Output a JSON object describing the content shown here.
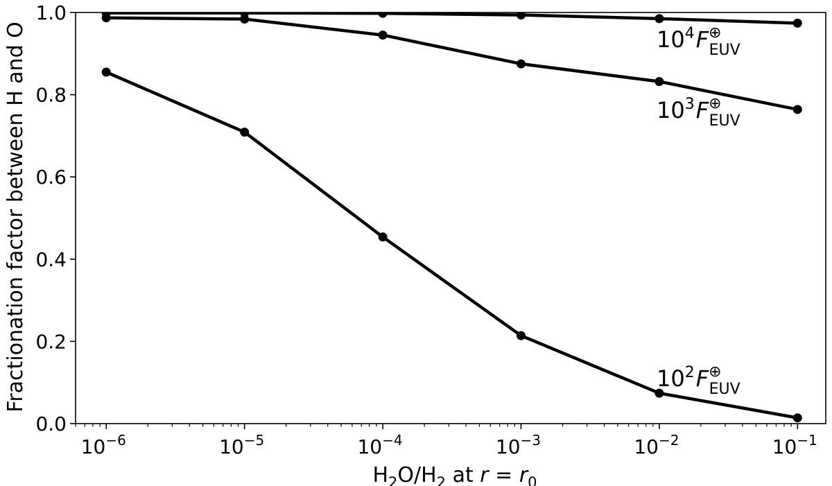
{
  "chart_data": {
    "type": "line",
    "xlabel": "H2O/H2 at r = r0",
    "ylabel": "Fractionation factor between H and O",
    "x_scale": "log",
    "x_ticks": [
      "1e-6",
      "1e-5",
      "1e-4",
      "1e-3",
      "1e-2",
      "1e-1"
    ],
    "x_tick_labels": [
      {
        "base": "10",
        "exp": "−6"
      },
      {
        "base": "10",
        "exp": "−5"
      },
      {
        "base": "10",
        "exp": "−4"
      },
      {
        "base": "10",
        "exp": "−3"
      },
      {
        "base": "10",
        "exp": "−2"
      },
      {
        "base": "10",
        "exp": "−1"
      }
    ],
    "y_ticks": [
      "0.0",
      "0.2",
      "0.4",
      "0.6",
      "0.8",
      "1.0"
    ],
    "xlim": [
      6e-07,
      0.16
    ],
    "ylim": [
      0.0,
      1.0
    ],
    "x": [
      1e-06,
      1e-05,
      0.0001,
      0.001,
      0.01,
      0.1
    ],
    "series": [
      {
        "name": "10^4 F_EUV",
        "label": {
          "base": "10",
          "exp": "4",
          "F": "F",
          "sup": "⊕",
          "sub": "EUV"
        },
        "values": [
          0.999,
          0.999,
          0.998,
          0.994,
          0.985,
          0.974
        ]
      },
      {
        "name": "10^3 F_EUV",
        "label": {
          "base": "10",
          "exp": "3",
          "F": "F",
          "sup": "⊕",
          "sub": "EUV"
        },
        "values": [
          0.987,
          0.984,
          0.945,
          0.875,
          0.832,
          0.764
        ]
      },
      {
        "name": "10^2 F_EUV",
        "label": {
          "base": "10",
          "exp": "2",
          "F": "F",
          "sup": "⊕",
          "sub": "EUV"
        },
        "values": [
          0.855,
          0.709,
          0.454,
          0.214,
          0.074,
          0.014
        ]
      }
    ],
    "line_color": "#000000",
    "grid": false,
    "legend": "none (inline labels near right end of each curve)"
  }
}
